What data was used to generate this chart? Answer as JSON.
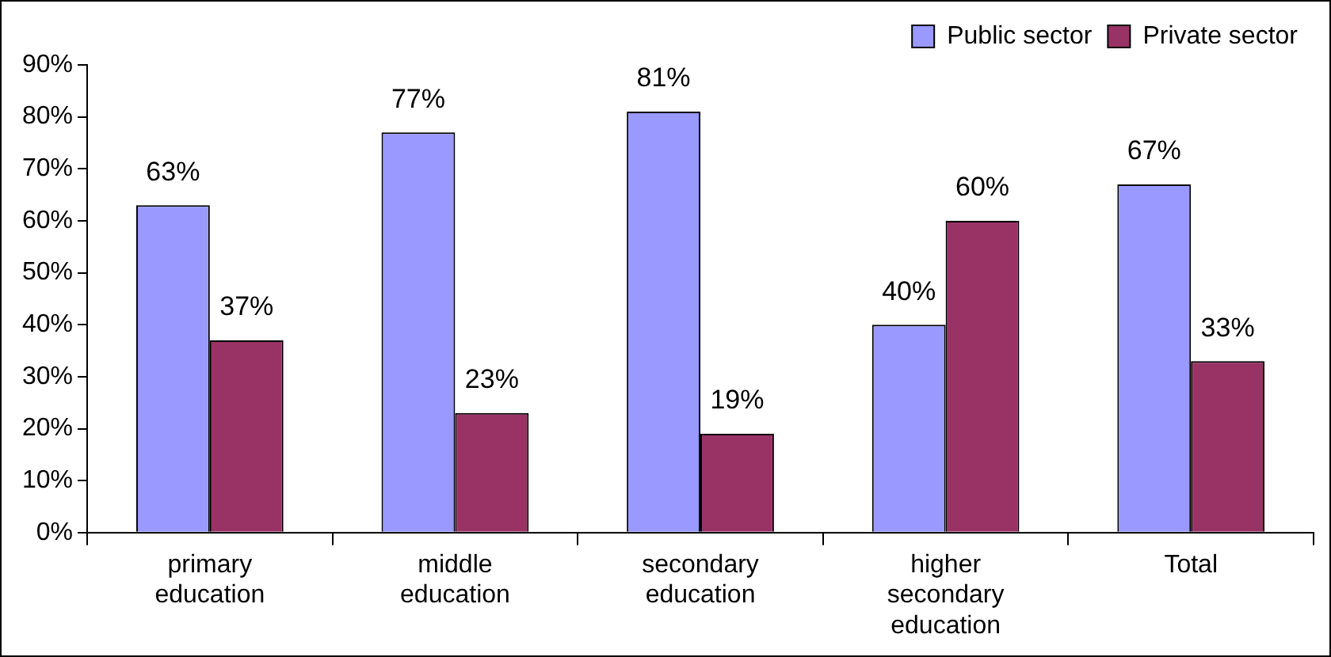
{
  "chart_data": {
    "type": "bar",
    "categories": [
      "primary education",
      "middle education",
      "secondary education",
      "higher secondary education",
      "Total"
    ],
    "series": [
      {
        "name": "Public sector",
        "color": "#9999ff",
        "values": [
          63,
          77,
          81,
          40,
          67
        ],
        "value_labels": [
          "63%",
          "77%",
          "81%",
          "40%",
          "67%"
        ]
      },
      {
        "name": "Private sector",
        "color": "#993366",
        "values": [
          37,
          23,
          19,
          60,
          33
        ],
        "value_labels": [
          "37%",
          "23%",
          "19%",
          "60%",
          "33%"
        ]
      }
    ],
    "ylim": [
      0,
      90
    ],
    "yticks": [
      {
        "value": 0,
        "label": "0%"
      },
      {
        "value": 10,
        "label": "10%"
      },
      {
        "value": 20,
        "label": "20%"
      },
      {
        "value": 30,
        "label": "30%"
      },
      {
        "value": 40,
        "label": "40%"
      },
      {
        "value": 50,
        "label": "50%"
      },
      {
        "value": 60,
        "label": "60%"
      },
      {
        "value": 70,
        "label": "70%"
      },
      {
        "value": 80,
        "label": "80%"
      },
      {
        "value": 90,
        "label": "90%"
      }
    ],
    "grid": false,
    "legend": "top right"
  }
}
